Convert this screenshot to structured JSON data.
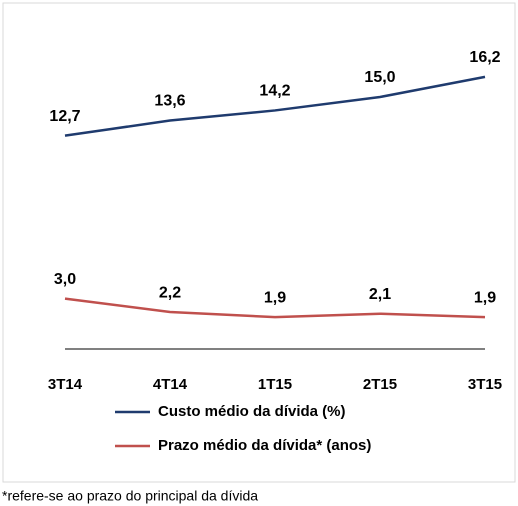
{
  "chart_data": {
    "type": "line",
    "categories": [
      "3T14",
      "4T14",
      "1T15",
      "2T15",
      "3T15"
    ],
    "series": [
      {
        "name": "Custo médio da dívida (%)",
        "color": "#1f3b6e",
        "values": [
          12.7,
          13.6,
          14.2,
          15.0,
          16.2
        ],
        "value_labels": [
          "12,7",
          "13,6",
          "14,2",
          "15,0",
          "16,2"
        ]
      },
      {
        "name": "Prazo médio da dívida* (anos)",
        "color": "#c0504d",
        "values": [
          3.0,
          2.2,
          1.9,
          2.1,
          1.9
        ],
        "value_labels": [
          "3,0",
          "2,2",
          "1,9",
          "2,1",
          "1,9"
        ]
      }
    ],
    "ylim": [
      0,
      18
    ],
    "footnote": "*refere-se ao prazo do principal da dívida"
  }
}
